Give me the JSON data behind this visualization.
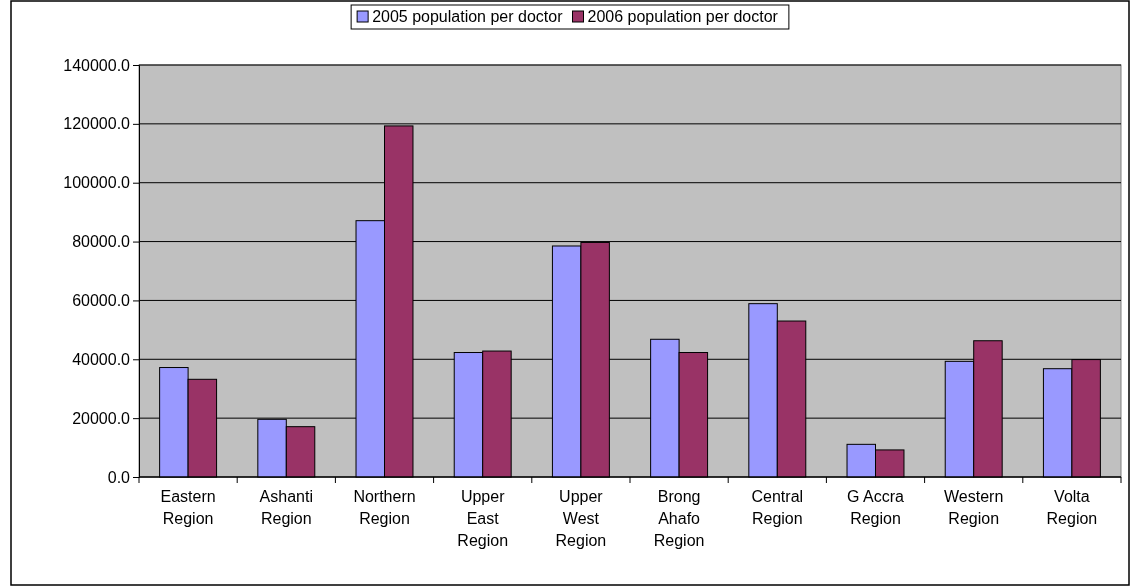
{
  "chart_data": {
    "type": "bar",
    "categories": [
      "Eastern Region",
      "Ashanti Region",
      "Northern Region",
      "Upper East Region",
      "Upper West Region",
      "Brong Ahafo Region",
      "Central Region",
      "G Accra Region",
      "Western Region",
      "Volta Region"
    ],
    "series": [
      {
        "name": "2005 population per doctor",
        "color": "#9999ff",
        "values": [
          37200,
          19600,
          87100,
          42300,
          78500,
          46800,
          58900,
          11100,
          39300,
          36800
        ]
      },
      {
        "name": "2006 population per doctor",
        "color": "#993366",
        "values": [
          33200,
          17100,
          119300,
          42800,
          79700,
          42300,
          53000,
          9200,
          46300,
          39900
        ]
      }
    ],
    "ylim": [
      0,
      140000
    ],
    "yticks": [
      {
        "value": 0,
        "label": "0.0"
      },
      {
        "value": 20000,
        "label": "20000.0"
      },
      {
        "value": 40000,
        "label": "40000.0"
      },
      {
        "value": 60000,
        "label": "60000.0"
      },
      {
        "value": 80000,
        "label": "80000.0"
      },
      {
        "value": 100000,
        "label": "100000.0"
      },
      {
        "value": 120000,
        "label": "120000.0"
      },
      {
        "value": 140000,
        "label": "140000.0"
      }
    ],
    "grid": "y",
    "legend": "top"
  }
}
